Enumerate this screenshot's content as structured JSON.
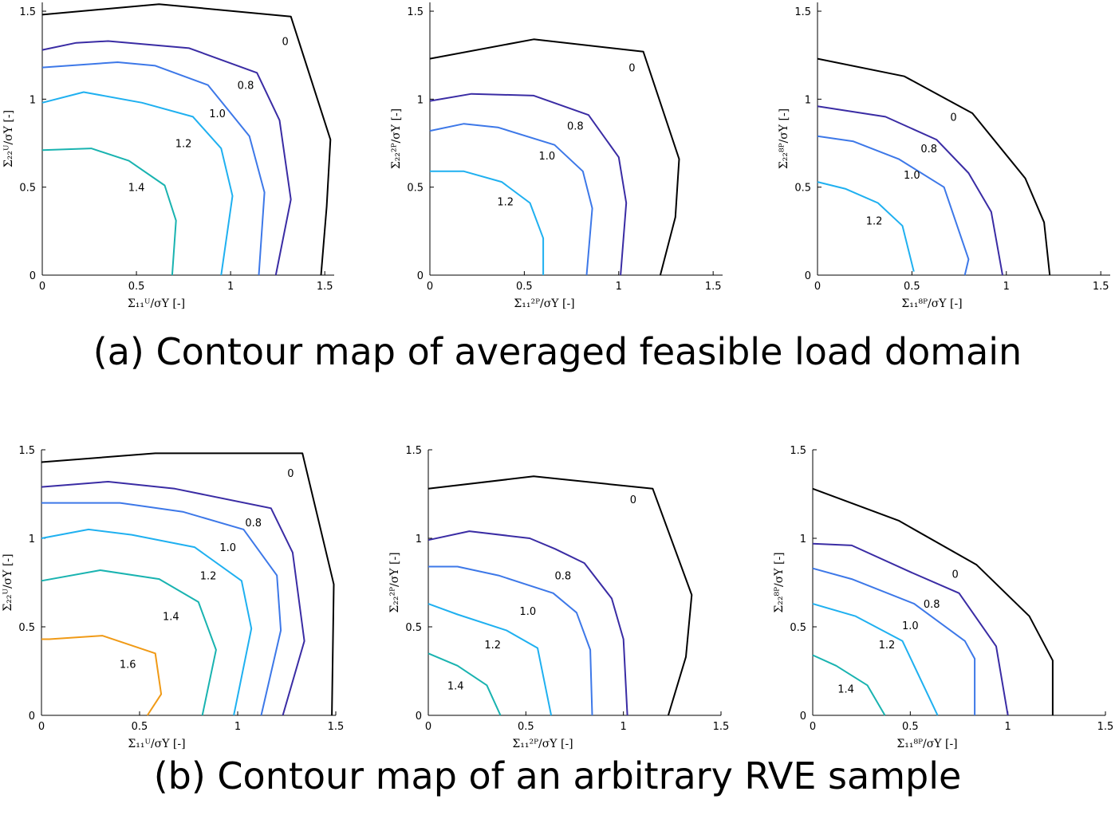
{
  "captions": {
    "a": "(a) Contour map of averaged feasible load domain",
    "b": "(b) Contour map of an arbitrary RVE sample"
  },
  "level_colors": {
    "0": "#000000",
    "0.8": "#3a2ca4",
    "1.0": "#3d78e8",
    "1.2": "#1fb0f0",
    "1.4": "#19b3b0",
    "1.6": "#f09a16"
  },
  "chart_data": [
    {
      "type": "line",
      "panel": "a-U",
      "xlabel": "Σ₁₁ᵁ/σY [-]",
      "ylabel": "Σ₂₂ᵁ/σY [-]",
      "xlim": [
        0,
        1.55
      ],
      "ylim": [
        0,
        1.55
      ],
      "xticks": [
        "0",
        "0.5",
        "1",
        "1.5"
      ],
      "yticks": [
        "0",
        "0.5",
        "1",
        "1.5"
      ],
      "series": [
        {
          "name": "0",
          "x": [
            0,
            0.62,
            1.32,
            1.53,
            1.51,
            1.48
          ],
          "y": [
            1.48,
            1.54,
            1.47,
            0.77,
            0.39,
            0
          ]
        },
        {
          "name": "0.8",
          "x": [
            0,
            0.18,
            0.35,
            0.78,
            1.14,
            1.26,
            1.32,
            1.24
          ],
          "y": [
            1.28,
            1.32,
            1.33,
            1.29,
            1.15,
            0.88,
            0.43,
            0
          ]
        },
        {
          "name": "1.0",
          "x": [
            0,
            0.4,
            0.6,
            0.88,
            1.1,
            1.18,
            1.15
          ],
          "y": [
            1.18,
            1.21,
            1.19,
            1.08,
            0.79,
            0.47,
            0
          ]
        },
        {
          "name": "1.2",
          "x": [
            0,
            0.22,
            0.53,
            0.8,
            0.95,
            1.01,
            0.95
          ],
          "y": [
            0.98,
            1.04,
            0.98,
            0.9,
            0.72,
            0.45,
            0
          ]
        },
        {
          "name": "1.4",
          "x": [
            0,
            0.26,
            0.46,
            0.65,
            0.71,
            0.69
          ],
          "y": [
            0.71,
            0.72,
            0.65,
            0.51,
            0.31,
            0
          ]
        }
      ],
      "contour_labels": [
        {
          "text": "0",
          "x": 1.29,
          "y": 1.33
        },
        {
          "text": "0.8",
          "x": 1.08,
          "y": 1.08
        },
        {
          "text": "1.0",
          "x": 0.93,
          "y": 0.92
        },
        {
          "text": "1.2",
          "x": 0.75,
          "y": 0.75
        },
        {
          "text": "1.4",
          "x": 0.5,
          "y": 0.5
        }
      ]
    },
    {
      "type": "line",
      "panel": "a-2P",
      "xlabel": "Σ₁₁²ᴾ/σY [-]",
      "ylabel": "Σ₂₂²ᴾ/σY [-]",
      "xlim": [
        0,
        1.55
      ],
      "ylim": [
        0,
        1.55
      ],
      "xticks": [
        "0",
        "0.5",
        "1",
        "1.5"
      ],
      "yticks": [
        "0",
        "0.5",
        "1",
        "1.5"
      ],
      "series": [
        {
          "name": "0",
          "x": [
            0,
            0.55,
            1.13,
            1.32,
            1.3,
            1.22
          ],
          "y": [
            1.23,
            1.34,
            1.27,
            0.66,
            0.33,
            0
          ]
        },
        {
          "name": "0.8",
          "x": [
            0,
            0.22,
            0.55,
            0.84,
            1.0,
            1.04,
            1.01
          ],
          "y": [
            0.99,
            1.03,
            1.02,
            0.91,
            0.67,
            0.41,
            0
          ]
        },
        {
          "name": "1.0",
          "x": [
            0,
            0.18,
            0.36,
            0.66,
            0.81,
            0.86,
            0.83
          ],
          "y": [
            0.82,
            0.86,
            0.84,
            0.74,
            0.59,
            0.38,
            0
          ]
        },
        {
          "name": "1.2",
          "x": [
            0,
            0.18,
            0.38,
            0.53,
            0.6,
            0.6
          ],
          "y": [
            0.59,
            0.59,
            0.53,
            0.41,
            0.21,
            0
          ]
        }
      ],
      "contour_labels": [
        {
          "text": "0",
          "x": 1.07,
          "y": 1.18
        },
        {
          "text": "0.8",
          "x": 0.77,
          "y": 0.85
        },
        {
          "text": "1.0",
          "x": 0.62,
          "y": 0.68
        },
        {
          "text": "1.2",
          "x": 0.4,
          "y": 0.42
        }
      ]
    },
    {
      "type": "line",
      "panel": "a-8P",
      "xlabel": "Σ₁₁⁸ᴾ/σY [-]",
      "ylabel": "Σ₂₂⁸ᴾ/σY [-]",
      "xlim": [
        0,
        1.55
      ],
      "ylim": [
        0,
        1.55
      ],
      "xticks": [
        "0",
        "0.5",
        "1",
        "1.5"
      ],
      "yticks": [
        "0",
        "0.5",
        "1",
        "1.5"
      ],
      "series": [
        {
          "name": "0",
          "x": [
            0,
            0.46,
            0.82,
            1.1,
            1.2,
            1.23
          ],
          "y": [
            1.23,
            1.13,
            0.92,
            0.55,
            0.3,
            0
          ]
        },
        {
          "name": "0.8",
          "x": [
            0,
            0.36,
            0.63,
            0.8,
            0.92,
            0.98
          ],
          "y": [
            0.96,
            0.9,
            0.77,
            0.58,
            0.36,
            0
          ]
        },
        {
          "name": "1.0",
          "x": [
            0,
            0.19,
            0.43,
            0.67,
            0.8,
            0.78
          ],
          "y": [
            0.79,
            0.76,
            0.66,
            0.5,
            0.09,
            0
          ]
        },
        {
          "name": "1.2",
          "x": [
            0,
            0.15,
            0.32,
            0.45,
            0.51
          ],
          "y": [
            0.53,
            0.49,
            0.41,
            0.28,
            0.02
          ]
        }
      ],
      "contour_labels": [
        {
          "text": "0",
          "x": 0.72,
          "y": 0.9
        },
        {
          "text": "0.8",
          "x": 0.59,
          "y": 0.72
        },
        {
          "text": "1.0",
          "x": 0.5,
          "y": 0.57
        },
        {
          "text": "1.2",
          "x": 0.3,
          "y": 0.31
        }
      ]
    },
    {
      "type": "line",
      "panel": "b-U",
      "xlabel": "Σ₁₁ᵁ/σY [-]",
      "ylabel": "Σ₂₂ᵁ/σY [-]",
      "xlim": [
        0,
        1.5
      ],
      "ylim": [
        0,
        1.5
      ],
      "xticks": [
        "0",
        "0.5",
        "1",
        "1.5"
      ],
      "yticks": [
        "0",
        "0.5",
        "1",
        "1.5"
      ],
      "series": [
        {
          "name": "0",
          "x": [
            0,
            0.58,
            1.33,
            1.49,
            1.48
          ],
          "y": [
            1.43,
            1.48,
            1.48,
            0.74,
            0
          ]
        },
        {
          "name": "0.8",
          "x": [
            0,
            0.34,
            0.68,
            1.17,
            1.28,
            1.34,
            1.23
          ],
          "y": [
            1.29,
            1.32,
            1.28,
            1.17,
            0.92,
            0.42,
            0
          ]
        },
        {
          "name": "1.0",
          "x": [
            0,
            0.4,
            0.72,
            1.03,
            1.2,
            1.22,
            1.12
          ],
          "y": [
            1.2,
            1.2,
            1.15,
            1.05,
            0.79,
            0.48,
            0
          ]
        },
        {
          "name": "1.2",
          "x": [
            0,
            0.24,
            0.46,
            0.78,
            1.02,
            1.07,
            0.98
          ],
          "y": [
            1.0,
            1.05,
            1.02,
            0.95,
            0.76,
            0.49,
            0
          ]
        },
        {
          "name": "1.4",
          "x": [
            0,
            0.3,
            0.6,
            0.8,
            0.89,
            0.82
          ],
          "y": [
            0.76,
            0.82,
            0.77,
            0.64,
            0.37,
            0
          ]
        },
        {
          "name": "1.6",
          "x": [
            0,
            0.04,
            0.31,
            0.58,
            0.61,
            0.54
          ],
          "y": [
            0.43,
            0.43,
            0.45,
            0.35,
            0.12,
            0
          ]
        }
      ],
      "contour_labels": [
        {
          "text": "0",
          "x": 1.27,
          "y": 1.37
        },
        {
          "text": "0.8",
          "x": 1.08,
          "y": 1.09
        },
        {
          "text": "1.0",
          "x": 0.95,
          "y": 0.95
        },
        {
          "text": "1.2",
          "x": 0.85,
          "y": 0.79
        },
        {
          "text": "1.4",
          "x": 0.66,
          "y": 0.56
        },
        {
          "text": "1.6",
          "x": 0.44,
          "y": 0.29
        }
      ]
    },
    {
      "type": "line",
      "panel": "b-2P",
      "xlabel": "Σ₁₁²ᴾ/σY [-]",
      "ylabel": "Σ₂₂²ᴾ/σY [-]",
      "xlim": [
        0,
        1.5
      ],
      "ylim": [
        0,
        1.5
      ],
      "xticks": [
        "0",
        "0.5",
        "1",
        "1.5"
      ],
      "yticks": [
        "0",
        "0.5",
        "1",
        "1.5"
      ],
      "series": [
        {
          "name": "0",
          "x": [
            0,
            0.54,
            1.15,
            1.35,
            1.32,
            1.23
          ],
          "y": [
            1.28,
            1.35,
            1.28,
            0.68,
            0.33,
            0
          ]
        },
        {
          "name": "0.8",
          "x": [
            0,
            0.21,
            0.52,
            0.65,
            0.8,
            0.94,
            1.0,
            1.02
          ],
          "y": [
            0.99,
            1.04,
            1.0,
            0.94,
            0.86,
            0.66,
            0.43,
            0
          ]
        },
        {
          "name": "1.0",
          "x": [
            0,
            0.15,
            0.36,
            0.64,
            0.76,
            0.83,
            0.84
          ],
          "y": [
            0.84,
            0.84,
            0.79,
            0.69,
            0.58,
            0.37,
            0
          ]
        },
        {
          "name": "1.2",
          "x": [
            0,
            0.15,
            0.4,
            0.56,
            0.63
          ],
          "y": [
            0.63,
            0.57,
            0.48,
            0.38,
            0
          ]
        },
        {
          "name": "1.4",
          "x": [
            0,
            0.15,
            0.3,
            0.37
          ],
          "y": [
            0.35,
            0.28,
            0.17,
            0
          ]
        }
      ],
      "contour_labels": [
        {
          "text": "0",
          "x": 1.05,
          "y": 1.22
        },
        {
          "text": "0.8",
          "x": 0.69,
          "y": 0.79
        },
        {
          "text": "1.0",
          "x": 0.51,
          "y": 0.59
        },
        {
          "text": "1.2",
          "x": 0.33,
          "y": 0.4
        },
        {
          "text": "1.4",
          "x": 0.14,
          "y": 0.17
        }
      ]
    },
    {
      "type": "line",
      "panel": "b-8P",
      "xlabel": "Σ₁₁⁸ᴾ/σY [-]",
      "ylabel": "Σ₂₂⁸ᴾ/σY [-]",
      "xlim": [
        0,
        1.5
      ],
      "ylim": [
        0,
        1.5
      ],
      "xticks": [
        "0",
        "0.5",
        "1",
        "1.5"
      ],
      "yticks": [
        "0",
        "0.5",
        "1",
        "1.5"
      ],
      "series": [
        {
          "name": "0",
          "x": [
            0,
            0.44,
            0.84,
            1.11,
            1.23,
            1.23
          ],
          "y": [
            1.28,
            1.1,
            0.85,
            0.56,
            0.31,
            0
          ]
        },
        {
          "name": "0.8",
          "x": [
            0,
            0.2,
            0.5,
            0.75,
            0.94,
            1.0
          ],
          "y": [
            0.97,
            0.96,
            0.81,
            0.69,
            0.39,
            0
          ]
        },
        {
          "name": "1.0",
          "x": [
            0,
            0.2,
            0.52,
            0.78,
            0.83,
            0.83
          ],
          "y": [
            0.83,
            0.77,
            0.63,
            0.42,
            0.32,
            0
          ]
        },
        {
          "name": "1.2",
          "x": [
            0,
            0.22,
            0.46,
            0.64
          ],
          "y": [
            0.63,
            0.56,
            0.42,
            0
          ]
        },
        {
          "name": "1.4",
          "x": [
            0,
            0.12,
            0.28,
            0.37
          ],
          "y": [
            0.34,
            0.28,
            0.17,
            0
          ]
        }
      ],
      "contour_labels": [
        {
          "text": "0",
          "x": 0.73,
          "y": 0.8
        },
        {
          "text": "0.8",
          "x": 0.61,
          "y": 0.63
        },
        {
          "text": "1.0",
          "x": 0.5,
          "y": 0.51
        },
        {
          "text": "1.2",
          "x": 0.38,
          "y": 0.4
        },
        {
          "text": "1.4",
          "x": 0.17,
          "y": 0.15
        }
      ]
    }
  ]
}
